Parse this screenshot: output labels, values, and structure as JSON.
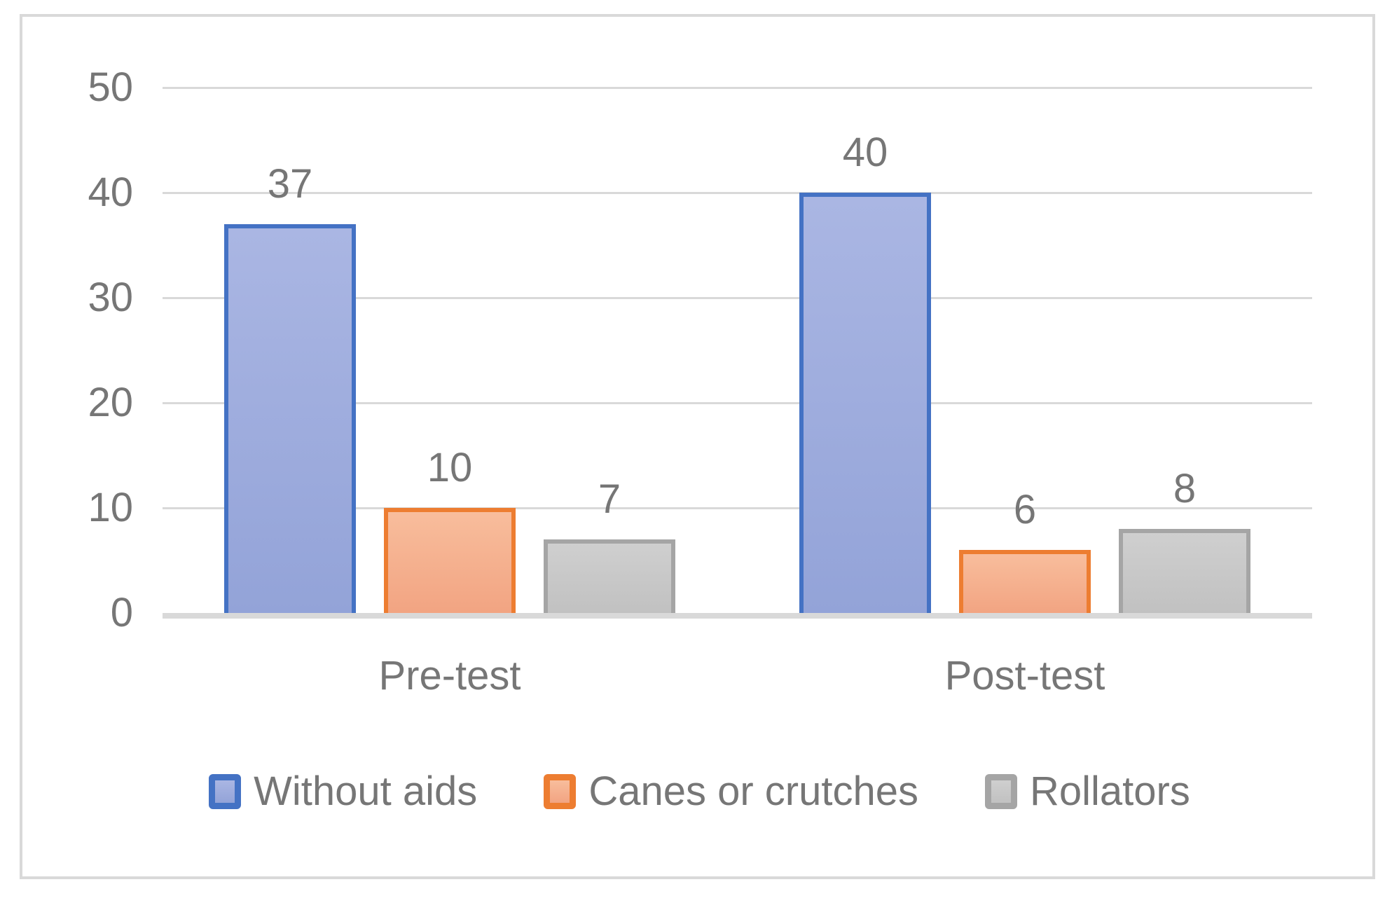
{
  "chart_data": {
    "type": "bar",
    "title": "",
    "xlabel": "",
    "ylabel": "",
    "categories": [
      "Pre-test",
      "Post-test"
    ],
    "series": [
      {
        "name": "Without aids",
        "values": [
          37,
          40
        ]
      },
      {
        "name": "Canes or crutches",
        "values": [
          10,
          6
        ]
      },
      {
        "name": "Rollators",
        "values": [
          7,
          8
        ]
      }
    ],
    "ylim": [
      0,
      50
    ],
    "yticks": [
      0,
      10,
      20,
      30,
      40,
      50
    ],
    "grid": true,
    "data_labels": true,
    "legend_position": "bottom",
    "colors": {
      "frame": "#D9D9D9",
      "grid": "#D9D9D9",
      "axis_line": "#D9D9D9",
      "text": "#767676",
      "series": [
        {
          "border": "#4472C4",
          "fill_top": "#AAB6E3",
          "fill_bottom": "#93A3D8"
        },
        {
          "border": "#ED7D31",
          "fill_top": "#F8BD9C",
          "fill_bottom": "#F2A482"
        },
        {
          "border": "#A5A5A5",
          "fill_top": "#CFCFCF",
          "fill_bottom": "#C1C1C1"
        }
      ]
    }
  }
}
